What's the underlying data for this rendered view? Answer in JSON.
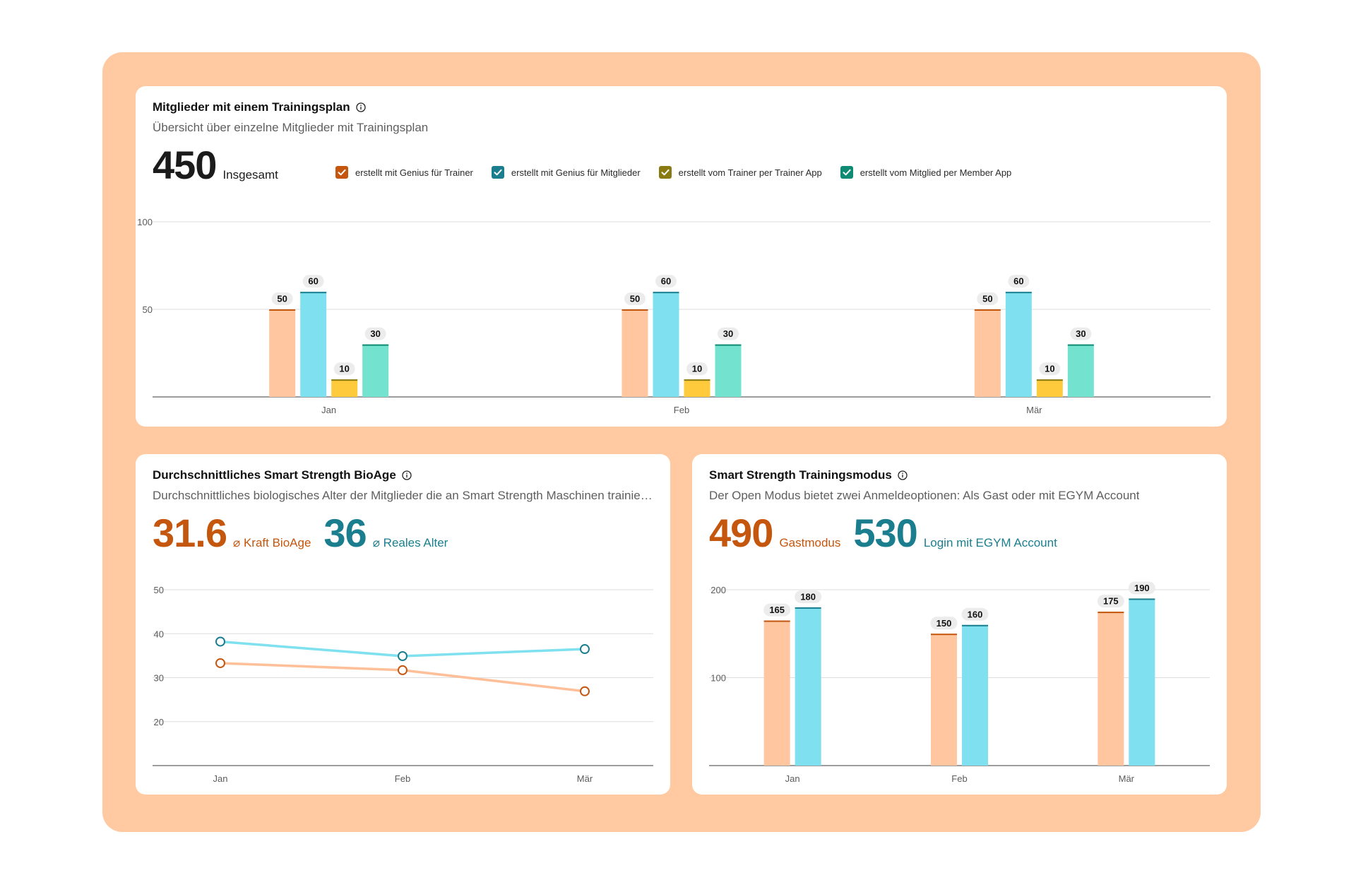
{
  "colors": {
    "orange": "#c4560e",
    "orange_fill": "#ffc6a0",
    "orange_line": "#ffbf99",
    "teal": "#1a7e8e",
    "teal_fill": "#7fe0f0",
    "gold": "#8a7a12",
    "gold_fill": "#ffcb3d",
    "green": "#0f8a73",
    "green_fill": "#73e3cf",
    "grid": "#dedede",
    "axis": "#3b3b3b",
    "tick": "#5b5b5b"
  },
  "members_card": {
    "title": "Mitglieder mit einem Trainingsplan",
    "info_icon": "info-icon",
    "subtitle": "Übersicht über einzelne Mitglieder mit Trainingsplan",
    "total_value": "450",
    "total_label": "Insgesamt",
    "legend": [
      {
        "label": "erstellt mit Genius für Trainer",
        "color": "#c4560e",
        "checked": true
      },
      {
        "label": "erstellt mit Genius für Mitglieder",
        "color": "#1a7e8e",
        "checked": true
      },
      {
        "label": "erstellt vom Trainer per Trainer App",
        "color": "#8a7a12",
        "checked": true
      },
      {
        "label": "erstellt vom Mitglied per Member App",
        "color": "#0f8a73",
        "checked": true
      }
    ]
  },
  "bioage_card": {
    "title": "Durchschnittliches Smart Strength BioAge",
    "info_icon": "info-icon",
    "subtitle": "Durchschnittliches biologisches Alter der Mitglieder die an Smart Strength Maschinen trainieren",
    "kpi1_value": "31.6",
    "kpi1_label": "⌀ Kraft BioAge",
    "kpi2_value": "36",
    "kpi2_label": "⌀ Reales Alter"
  },
  "mode_card": {
    "title": "Smart Strength Trainingsmodus",
    "info_icon": "info-icon",
    "subtitle": "Der Open Modus bietet zwei Anmeldeoptionen: Als Gast oder mit EGYM Account",
    "kpi1_value": "490",
    "kpi1_label": "Gastmodus",
    "kpi2_value": "530",
    "kpi2_label": "Login mit EGYM Account"
  },
  "chart_data": [
    {
      "type": "bar",
      "categories": [
        "Jan",
        "Feb",
        "Mär"
      ],
      "ylim": [
        0,
        100
      ],
      "yticks": [
        50,
        100
      ],
      "series": [
        {
          "name": "erstellt mit Genius für Trainer",
          "values": [
            50,
            50,
            50
          ],
          "color": "orange"
        },
        {
          "name": "erstellt mit Genius für Mitglieder",
          "values": [
            60,
            60,
            60
          ],
          "color": "teal"
        },
        {
          "name": "erstellt vom Trainer per Trainer App",
          "values": [
            10,
            10,
            10
          ],
          "color": "gold"
        },
        {
          "name": "erstellt vom Mitglied per Member App",
          "values": [
            30,
            30,
            30
          ],
          "color": "green"
        }
      ],
      "data_labels": true,
      "grid": true
    },
    {
      "type": "line",
      "categories": [
        "Jan",
        "Feb",
        "Mär"
      ],
      "ylim": [
        10,
        50
      ],
      "yticks": [
        20,
        30,
        40,
        50
      ],
      "series": [
        {
          "name": "⌀ Reales Alter",
          "values": [
            38.2,
            34.9,
            36.5
          ],
          "color": "teal"
        },
        {
          "name": "⌀ Kraft BioAge",
          "values": [
            33.3,
            31.7,
            26.9
          ],
          "color": "orange"
        }
      ],
      "grid": true
    },
    {
      "type": "bar",
      "categories": [
        "Jan",
        "Feb",
        "Mär"
      ],
      "ylim": [
        0,
        200
      ],
      "yticks": [
        100,
        200
      ],
      "series": [
        {
          "name": "Gastmodus",
          "values": [
            165,
            150,
            175
          ],
          "color": "orange"
        },
        {
          "name": "Login mit EGYM Account",
          "values": [
            180,
            160,
            190
          ],
          "color": "teal"
        }
      ],
      "data_labels": true,
      "grid": true
    }
  ]
}
